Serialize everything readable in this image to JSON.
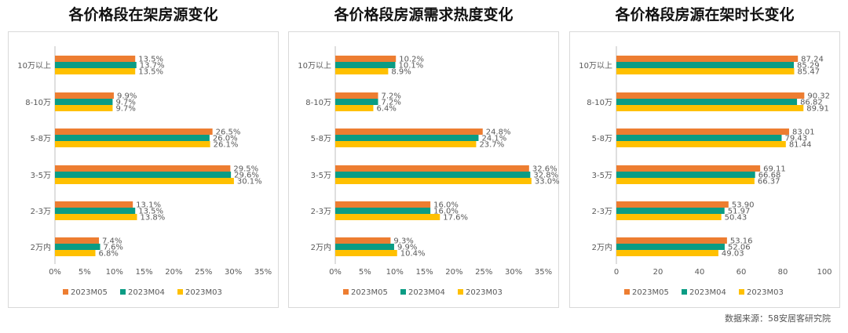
{
  "source": "数据来源：58安居客研究院",
  "colors": {
    "M05": "#ed7d31",
    "M04": "#0a9c84",
    "M03": "#ffc000"
  },
  "chart_data": [
    {
      "type": "bar",
      "orientation": "horizontal",
      "title": "各价格段在架房源变化",
      "categories": [
        "10万以上",
        "8-10万",
        "5-8万",
        "3-5万",
        "2-3万",
        "2万内"
      ],
      "series": [
        {
          "name": "2023M05",
          "values": [
            13.5,
            9.9,
            26.5,
            29.5,
            13.1,
            7.4
          ]
        },
        {
          "name": "2023M04",
          "values": [
            13.7,
            9.7,
            26.0,
            29.6,
            13.5,
            7.6
          ]
        },
        {
          "name": "2023M03",
          "values": [
            13.5,
            9.7,
            26.1,
            30.1,
            13.8,
            6.8
          ]
        }
      ],
      "value_labels": [
        [
          "13.5%",
          "9.9%",
          "26.5%",
          "29.5%",
          "13.1%",
          "7.4%"
        ],
        [
          "13.7%",
          "9.7%",
          "26.0%",
          "29.6%",
          "13.5%",
          "7.6%"
        ],
        [
          "13.5%",
          "9.7%",
          "26.1%",
          "30.1%",
          "13.8%",
          "6.8%"
        ]
      ],
      "xlim": [
        0,
        35
      ],
      "ticks": [
        0,
        5,
        10,
        15,
        20,
        25,
        30,
        35
      ],
      "tick_labels": [
        "0%",
        "5%",
        "10%",
        "15%",
        "20%",
        "25%",
        "30%",
        "35%"
      ],
      "legend": "bottom"
    },
    {
      "type": "bar",
      "orientation": "horizontal",
      "title": "各价格段房源需求热度变化",
      "categories": [
        "10万以上",
        "8-10万",
        "5-8万",
        "3-5万",
        "2-3万",
        "2万内"
      ],
      "series": [
        {
          "name": "2023M05",
          "values": [
            10.2,
            7.2,
            24.8,
            32.6,
            16.0,
            9.3
          ]
        },
        {
          "name": "2023M04",
          "values": [
            10.1,
            7.2,
            24.1,
            32.8,
            16.0,
            9.9
          ]
        },
        {
          "name": "2023M03",
          "values": [
            8.9,
            6.4,
            23.7,
            33.0,
            17.6,
            10.4
          ]
        }
      ],
      "value_labels": [
        [
          "10.2%",
          "7.2%",
          "24.8%",
          "32.6%",
          "16.0%",
          "9.3%"
        ],
        [
          "10.1%",
          "7.2%",
          "24.1%",
          "32.8%",
          "16.0%",
          "9.9%"
        ],
        [
          "8.9%",
          "6.4%",
          "23.7%",
          "33.0%",
          "17.6%",
          "10.4%"
        ]
      ],
      "xlim": [
        0,
        35
      ],
      "ticks": [
        0,
        5,
        10,
        15,
        20,
        25,
        30,
        35
      ],
      "tick_labels": [
        "0%",
        "5%",
        "10%",
        "15%",
        "20%",
        "25%",
        "30%",
        "35%"
      ],
      "legend": "bottom"
    },
    {
      "type": "bar",
      "orientation": "horizontal",
      "title": "各价格段房源在架时长变化",
      "categories": [
        "10万以上",
        "8-10万",
        "5-8万",
        "3-5万",
        "2-3万",
        "2万内"
      ],
      "series": [
        {
          "name": "2023M05",
          "values": [
            87.24,
            90.32,
            83.01,
            69.11,
            53.9,
            53.16
          ]
        },
        {
          "name": "2023M04",
          "values": [
            85.29,
            86.82,
            79.43,
            66.68,
            51.97,
            52.06
          ]
        },
        {
          "name": "2023M03",
          "values": [
            85.47,
            89.91,
            81.44,
            66.37,
            50.43,
            49.03
          ]
        }
      ],
      "value_labels": [
        [
          "87.24",
          "90.32",
          "83.01",
          "69.11",
          "53.90",
          "53.16"
        ],
        [
          "85.29",
          "86.82",
          "79.43",
          "66.68",
          "51.97",
          "52.06"
        ],
        [
          "85.47",
          "89.91",
          "81.44",
          "66.37",
          "50.43",
          "49.03"
        ]
      ],
      "xlim": [
        0,
        100
      ],
      "ticks": [
        0,
        20,
        40,
        60,
        80,
        100
      ],
      "tick_labels": [
        "0",
        "20",
        "40",
        "60",
        "80",
        "100"
      ],
      "legend": "bottom"
    }
  ]
}
